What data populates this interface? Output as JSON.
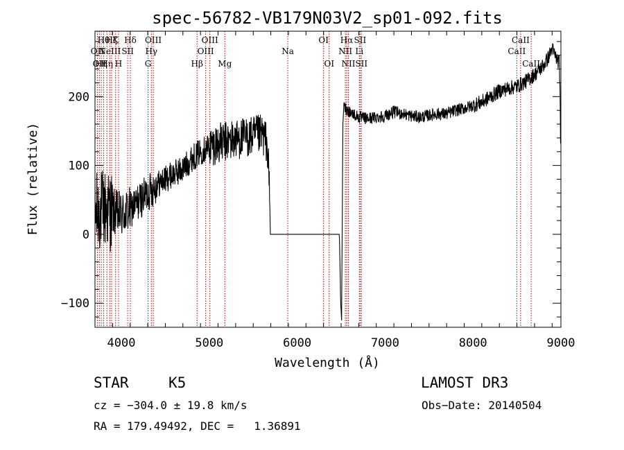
{
  "chart_data": {
    "type": "line",
    "title": "spec-56782-VB179N03V2_sp01-092.fits",
    "xlabel": "Wavelength (Å)",
    "ylabel": "Flux (relative)",
    "xlim": [
      3700,
      9000
    ],
    "ylim": [
      -135,
      295
    ],
    "x_ticks": [
      4000,
      5000,
      6000,
      7000,
      8000,
      9000
    ],
    "y_ticks": [
      -100,
      0,
      100,
      200
    ],
    "x_tick_labels": [
      "4000",
      "5000",
      "6000",
      "7000",
      "8000",
      "9000"
    ],
    "y_tick_labels": [
      "−100",
      "0",
      "100",
      "200"
    ],
    "line_color": "#000000",
    "marker_color": "#b00000",
    "continuum": [
      [
        3700,
        30
      ],
      [
        3800,
        38
      ],
      [
        3900,
        33
      ],
      [
        4000,
        28
      ],
      [
        4100,
        35
      ],
      [
        4200,
        48
      ],
      [
        4300,
        60
      ],
      [
        4400,
        72
      ],
      [
        4500,
        80
      ],
      [
        4600,
        88
      ],
      [
        4700,
        95
      ],
      [
        4800,
        110
      ],
      [
        4900,
        120
      ],
      [
        5000,
        128
      ],
      [
        5100,
        132
      ],
      [
        5200,
        135
      ],
      [
        5300,
        138
      ],
      [
        5400,
        140
      ],
      [
        5500,
        142
      ],
      [
        5600,
        145
      ],
      [
        5650,
        135
      ],
      [
        5670,
        110
      ],
      [
        5685,
        60
      ],
      [
        5695,
        0
      ],
      [
        6480,
        0
      ],
      [
        6495,
        -100
      ],
      [
        6505,
        -125
      ],
      [
        6512,
        0
      ],
      [
        6520,
        165
      ],
      [
        6530,
        185
      ],
      [
        6600,
        178
      ],
      [
        6700,
        170
      ],
      [
        6800,
        168
      ],
      [
        6900,
        170
      ],
      [
        7000,
        172
      ],
      [
        7100,
        178
      ],
      [
        7200,
        175
      ],
      [
        7300,
        172
      ],
      [
        7400,
        170
      ],
      [
        7500,
        173
      ],
      [
        7600,
        175
      ],
      [
        7700,
        175
      ],
      [
        7800,
        180
      ],
      [
        7900,
        183
      ],
      [
        8000,
        187
      ],
      [
        8100,
        192
      ],
      [
        8200,
        200
      ],
      [
        8300,
        208
      ],
      [
        8400,
        212
      ],
      [
        8500,
        215
      ],
      [
        8600,
        222
      ],
      [
        8700,
        232
      ],
      [
        8800,
        245
      ],
      [
        8850,
        255
      ],
      [
        8900,
        270
      ],
      [
        8950,
        255
      ],
      [
        8980,
        250
      ],
      [
        8990,
        220
      ],
      [
        8995,
        125
      ],
      [
        9000,
        120
      ]
    ],
    "line_markers": [
      {
        "wavelength": 3727,
        "label": "OII",
        "row": 2
      },
      {
        "wavelength": 3750,
        "label": "OII",
        "row": 3
      },
      {
        "wavelength": 3771,
        "label": "Hη",
        "row": 3
      },
      {
        "wavelength": 3798,
        "label": "Hθ",
        "row": 1
      },
      {
        "wavelength": 3835,
        "label": "Hη",
        "row": 3
      },
      {
        "wavelength": 3869,
        "label": "NeIII",
        "row": 2
      },
      {
        "wavelength": 3889,
        "label": "Hζ",
        "row": 1
      },
      {
        "wavelength": 3934,
        "label": "K",
        "row": 1
      },
      {
        "wavelength": 3968,
        "label": "H",
        "row": 3
      },
      {
        "wavelength": 4072,
        "label": "SII",
        "row": 2
      },
      {
        "wavelength": 4102,
        "label": "Hδ",
        "row": 1
      },
      {
        "wavelength": 4304,
        "label": "G",
        "row": 3
      },
      {
        "wavelength": 4341,
        "label": "Hγ",
        "row": 2
      },
      {
        "wavelength": 4363,
        "label": "OIII",
        "row": 1
      },
      {
        "wavelength": 4861,
        "label": "Hβ",
        "row": 3
      },
      {
        "wavelength": 4959,
        "label": "OIII",
        "row": 2
      },
      {
        "wavelength": 5007,
        "label": "OIII",
        "row": 1
      },
      {
        "wavelength": 5177,
        "label": "Mg",
        "row": 3
      },
      {
        "wavelength": 5893,
        "label": "Na",
        "row": 2
      },
      {
        "wavelength": 6300,
        "label": "OI",
        "row": 1
      },
      {
        "wavelength": 6364,
        "label": "OI",
        "row": 3
      },
      {
        "wavelength": 6548,
        "label": "NII",
        "row": 2
      },
      {
        "wavelength": 6563,
        "label": "Hα",
        "row": 1
      },
      {
        "wavelength": 6583,
        "label": "NII",
        "row": 3
      },
      {
        "wavelength": 6707,
        "label": "Li",
        "row": 2
      },
      {
        "wavelength": 6716,
        "label": "SII",
        "row": 1
      },
      {
        "wavelength": 6731,
        "label": "SII",
        "row": 3
      },
      {
        "wavelength": 8498,
        "label": "CaII",
        "row": 2
      },
      {
        "wavelength": 8542,
        "label": "CaII",
        "row": 1
      },
      {
        "wavelength": 8662,
        "label": "CaII",
        "row": 3
      }
    ]
  },
  "info": {
    "class": "STAR",
    "subclass": "K5",
    "survey": "LAMOST DR3",
    "cz": "cz = −304.0 ± 19.8 km/s",
    "obs_date": "Obs−Date: 20140504",
    "coords": "RA = 179.49492, DEC =   1.36891"
  }
}
